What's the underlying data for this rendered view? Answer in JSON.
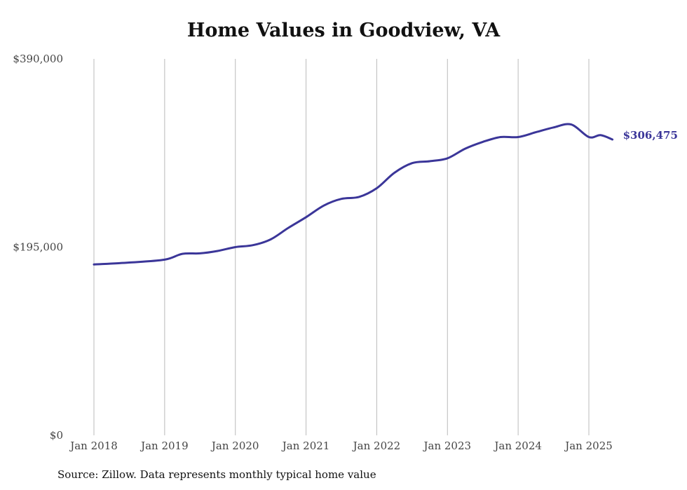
{
  "chart_data": {
    "type": "line",
    "title": "Home Values in Goodview, VA",
    "xlabel": "",
    "ylabel": "",
    "ylim": [
      0,
      390000
    ],
    "y_ticks": [
      "$0",
      "$195,000",
      "$390,000"
    ],
    "y_tick_values": [
      0,
      195000,
      390000
    ],
    "x_ticks": [
      "Jan 2018",
      "Jan 2019",
      "Jan 2020",
      "Jan 2021",
      "Jan 2022",
      "Jan 2023",
      "Jan 2024",
      "Jan 2025"
    ],
    "x_tick_values": [
      "2018-01",
      "2019-01",
      "2020-01",
      "2021-01",
      "2022-01",
      "2023-01",
      "2024-01",
      "2025-01"
    ],
    "grid": "vertical",
    "series": [
      {
        "color": "#3b3699",
        "end_label": "$306,475",
        "x": [
          "2018-01",
          "2018-07",
          "2019-01",
          "2019-04",
          "2019-07",
          "2019-10",
          "2020-01",
          "2020-04",
          "2020-07",
          "2020-10",
          "2021-01",
          "2021-04",
          "2021-07",
          "2021-10",
          "2022-01",
          "2022-04",
          "2022-07",
          "2022-10",
          "2023-01",
          "2023-04",
          "2023-07",
          "2023-10",
          "2024-01",
          "2024-04",
          "2024-07",
          "2024-10",
          "2025-01",
          "2025-03",
          "2025-05"
        ],
        "values": [
          177000,
          179000,
          182000,
          188000,
          188500,
          191000,
          195000,
          197000,
          203000,
          215000,
          226000,
          238000,
          245000,
          247000,
          256000,
          272000,
          282000,
          284000,
          287000,
          297000,
          304000,
          309000,
          309000,
          314000,
          319000,
          322000,
          309000,
          311000,
          306475
        ]
      }
    ]
  },
  "note": "Source: Zillow. Data represents monthly typical home value"
}
